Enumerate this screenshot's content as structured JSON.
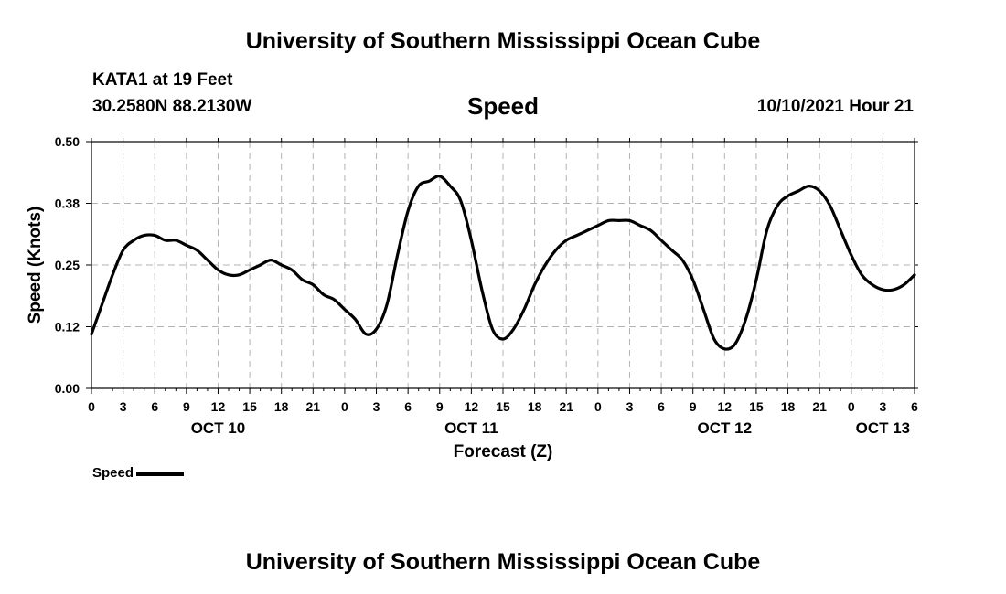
{
  "header": {
    "title": "University of Southern Mississippi Ocean Cube",
    "station": "KATA1 at 19 Feet",
    "coords": "30.2580N  88.2130W",
    "subtitle": "Speed",
    "datetime": "10/10/2021 Hour 21"
  },
  "footer": {
    "title": "University of Southern Mississippi Ocean Cube"
  },
  "legend": {
    "label": "Speed"
  },
  "chart_data": {
    "type": "line",
    "title": "Speed",
    "xlabel": "Forecast (Z)",
    "ylabel": "Speed (Knots)",
    "ylim": [
      0,
      0.5
    ],
    "xlim_hours": [
      0,
      78
    ],
    "yticks": [
      "0.00",
      "0.12",
      "0.25",
      "0.38",
      "0.50"
    ],
    "ytick_values": [
      0,
      0.125,
      0.25,
      0.375,
      0.5
    ],
    "xtick_labels": [
      "0",
      "3",
      "6",
      "9",
      "12",
      "15",
      "18",
      "21",
      "0",
      "3",
      "6",
      "9",
      "12",
      "15",
      "18",
      "21",
      "0",
      "3",
      "6",
      "9",
      "12",
      "15",
      "18",
      "21",
      "0",
      "3",
      "6"
    ],
    "date_labels": [
      {
        "label": "OCT 10",
        "hour": 12
      },
      {
        "label": "OCT 11",
        "hour": 36
      },
      {
        "label": "OCT 12",
        "hour": 60
      },
      {
        "label": "OCT 13",
        "hour": 75
      }
    ],
    "grid": true,
    "series": [
      {
        "name": "Speed",
        "color": "#000000",
        "x": [
          0,
          1,
          2,
          3,
          4,
          5,
          6,
          7,
          8,
          9,
          10,
          11,
          12,
          13,
          14,
          15,
          16,
          17,
          18,
          19,
          20,
          21,
          22,
          23,
          24,
          25,
          26,
          27,
          28,
          29,
          30,
          31,
          32,
          33,
          34,
          35,
          36,
          37,
          38,
          39,
          40,
          41,
          42,
          43,
          44,
          45,
          46,
          47,
          48,
          49,
          50,
          51,
          52,
          53,
          54,
          55,
          56,
          57,
          58,
          59,
          60,
          61,
          62,
          63,
          64,
          65,
          66,
          67,
          68,
          69,
          70,
          71,
          72,
          73,
          74,
          75,
          76,
          77,
          78
        ],
        "values": [
          0.11,
          0.17,
          0.23,
          0.28,
          0.3,
          0.31,
          0.31,
          0.3,
          0.3,
          0.29,
          0.28,
          0.26,
          0.24,
          0.23,
          0.23,
          0.24,
          0.25,
          0.26,
          0.25,
          0.24,
          0.22,
          0.21,
          0.19,
          0.18,
          0.16,
          0.14,
          0.11,
          0.12,
          0.17,
          0.27,
          0.36,
          0.41,
          0.42,
          0.43,
          0.41,
          0.38,
          0.3,
          0.2,
          0.12,
          0.1,
          0.12,
          0.16,
          0.21,
          0.25,
          0.28,
          0.3,
          0.31,
          0.32,
          0.33,
          0.34,
          0.34,
          0.34,
          0.33,
          0.32,
          0.3,
          0.28,
          0.26,
          0.22,
          0.16,
          0.1,
          0.08,
          0.09,
          0.14,
          0.22,
          0.32,
          0.37,
          0.39,
          0.4,
          0.41,
          0.4,
          0.37,
          0.32,
          0.27,
          0.23,
          0.21,
          0.2,
          0.2,
          0.21,
          0.23
        ]
      }
    ]
  }
}
